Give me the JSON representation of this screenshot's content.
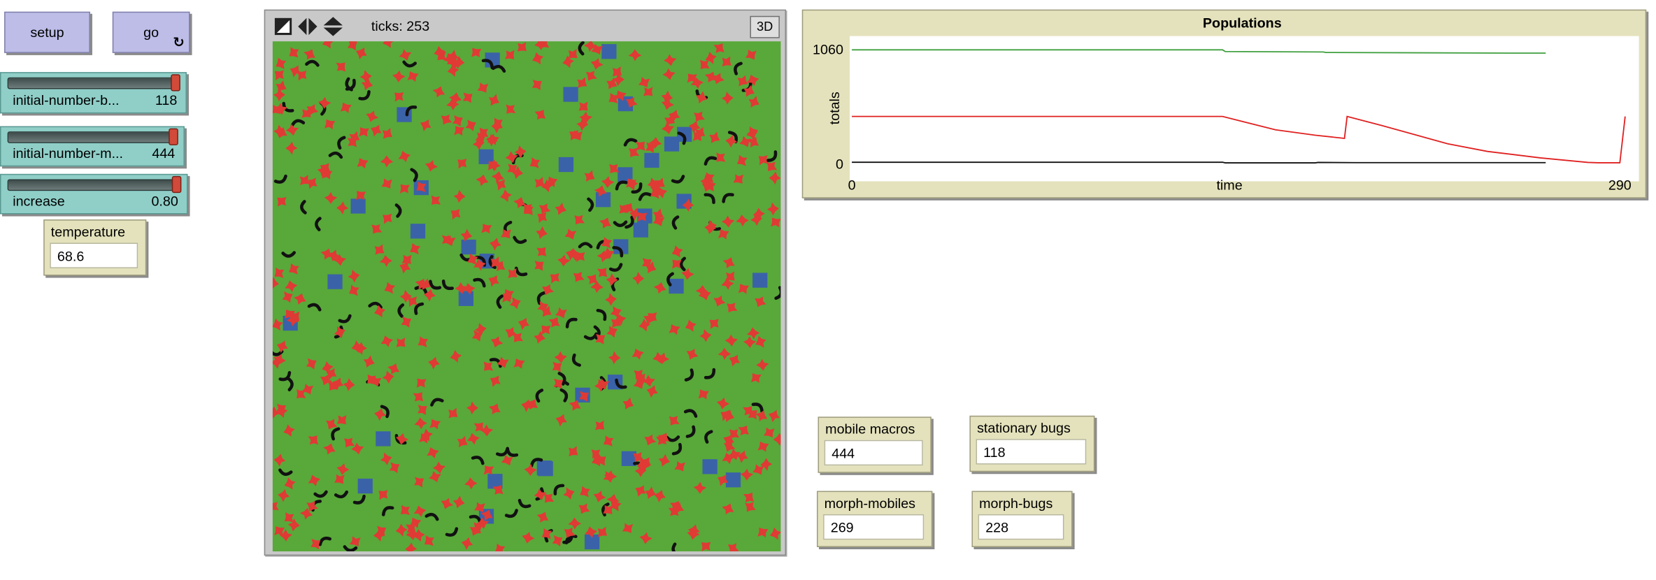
{
  "buttons": {
    "setup_label": "setup",
    "go_label": "go",
    "go_forever_icon": "forever-loop-icon",
    "forever_glyph": "↻"
  },
  "sliders": [
    {
      "label": "initial-number-b...",
      "value": "118",
      "fraction": 1.0
    },
    {
      "label": "initial-number-m...",
      "value": "444",
      "fraction": 1.0
    },
    {
      "label": "increase",
      "value": "0.80",
      "fraction": 1.0
    }
  ],
  "temperature": {
    "label": "temperature",
    "value": "68.6"
  },
  "view": {
    "ticks_label": "ticks: 253",
    "three_d_label": "3D",
    "tool_icons": [
      "world-resize-icon",
      "horizontal-arrows-icon",
      "vertical-arrows-icon"
    ],
    "patch_color": "#59a83a",
    "stationary_color": "#3a62a8",
    "macro_color": "#e03a35",
    "bug_color": "#111111"
  },
  "monitors": {
    "mobile_macros": {
      "label": "mobile macros",
      "value": "444"
    },
    "stationary_bugs": {
      "label": "stationary bugs",
      "value": "118"
    },
    "morph_mobiles": {
      "label": "morph-mobiles",
      "value": "269"
    },
    "morph_bugs": {
      "label": "morph-bugs",
      "value": "228"
    }
  },
  "chart_data": {
    "type": "line",
    "title": "Populations",
    "xlabel": "time",
    "ylabel": "totals",
    "xlim": [
      0,
      290
    ],
    "ylim": [
      0,
      1060
    ],
    "x_tick_labels": [
      "0",
      "290"
    ],
    "y_tick_labels": [
      "1060",
      "0"
    ],
    "grid": false,
    "series": [
      {
        "color": "#3f9f3f",
        "points": [
          [
            0,
            1060
          ],
          [
            140,
            1060
          ],
          [
            141,
            1044
          ],
          [
            178,
            1040
          ],
          [
            179,
            1035
          ],
          [
            250,
            1030
          ],
          [
            262,
            1030
          ]
        ]
      },
      {
        "color": "#e02020",
        "points": [
          [
            0,
            444
          ],
          [
            140,
            444
          ],
          [
            160,
            320
          ],
          [
            175,
            270
          ],
          [
            186,
            240
          ],
          [
            187,
            444
          ],
          [
            200,
            360
          ],
          [
            225,
            190
          ],
          [
            240,
            120
          ],
          [
            260,
            60
          ],
          [
            278,
            18
          ],
          [
            282,
            15
          ],
          [
            290,
            15
          ],
          [
            292,
            444
          ]
        ]
      },
      {
        "color": "#111111",
        "points": [
          [
            0,
            20
          ],
          [
            140,
            20
          ],
          [
            141,
            14
          ],
          [
            175,
            14
          ],
          [
            176,
            18
          ],
          [
            190,
            16
          ],
          [
            262,
            16
          ]
        ]
      }
    ]
  }
}
